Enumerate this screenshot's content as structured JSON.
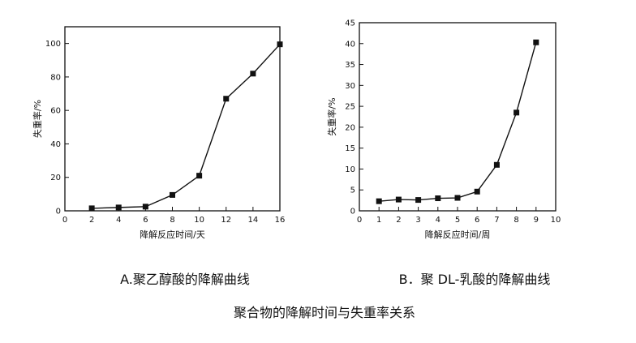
{
  "figure_title": "聚合物的降解时间与失重率关系",
  "chart_data": [
    {
      "type": "line",
      "caption": "A.聚乙醇酸的降解曲线",
      "xlabel": "降解反应时间/天",
      "ylabel": "失重率/%",
      "xlim": [
        0,
        16
      ],
      "ylim": [
        0,
        110
      ],
      "xticks": [
        0,
        2,
        4,
        6,
        8,
        10,
        12,
        14,
        16
      ],
      "yticks": [
        0,
        20,
        40,
        60,
        80,
        100
      ],
      "grid": false,
      "series": [
        {
          "x": [
            2,
            4,
            6,
            8,
            10,
            12,
            14,
            16
          ],
          "values": [
            1.5,
            2,
            2.5,
            9.5,
            21,
            67,
            82,
            99.5
          ]
        }
      ]
    },
    {
      "type": "line",
      "caption": "B．聚 DL-乳酸的降解曲线",
      "xlabel": "降解反应时间/周",
      "ylabel": "失重率/%",
      "xlim": [
        0,
        10
      ],
      "ylim": [
        0,
        45
      ],
      "xticks": [
        0,
        1,
        2,
        3,
        4,
        5,
        6,
        7,
        8,
        9,
        10
      ],
      "yticks": [
        0,
        5,
        10,
        15,
        20,
        25,
        30,
        35,
        40,
        45
      ],
      "grid": false,
      "series": [
        {
          "x": [
            1,
            2,
            3,
            4,
            5,
            6,
            7,
            8,
            9
          ],
          "values": [
            2.3,
            2.7,
            2.6,
            3.0,
            3.1,
            4.6,
            11,
            23.5,
            40.3
          ]
        }
      ]
    }
  ]
}
